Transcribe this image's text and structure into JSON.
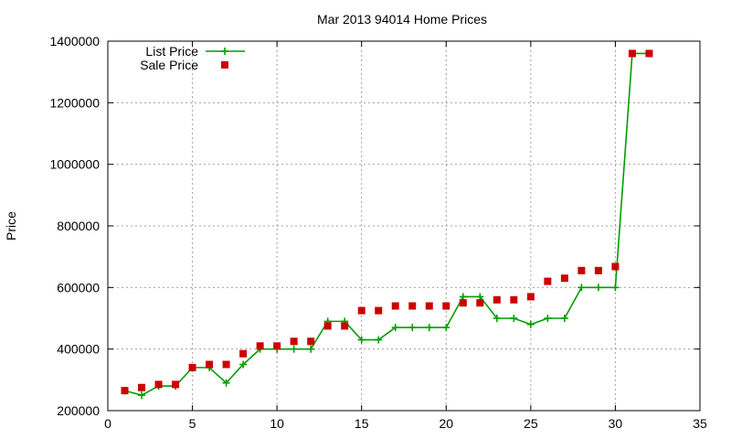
{
  "chart_data": {
    "type": "line",
    "title": "Mar 2013 94014 Home Prices",
    "xlabel": "",
    "ylabel": "Price",
    "xlim": [
      0,
      35
    ],
    "ylim": [
      200000,
      1400000
    ],
    "xticks": [
      "0",
      "5",
      "10",
      "15",
      "20",
      "25",
      "30",
      "35"
    ],
    "yticks": [
      "200000",
      "400000",
      "600000",
      "800000",
      "1000000",
      "1200000",
      "1400000"
    ],
    "grid": true,
    "legend_position": "top-left",
    "series": [
      {
        "name": "List Price",
        "style": "line-with-plus-markers",
        "color": "#009e00",
        "x": [
          1,
          2,
          3,
          4,
          5,
          6,
          7,
          8,
          9,
          10,
          11,
          12,
          13,
          14,
          15,
          16,
          17,
          18,
          19,
          20,
          21,
          22,
          23,
          24,
          25,
          26,
          27,
          28,
          29,
          30,
          31,
          32
        ],
        "y": [
          265000,
          250000,
          280000,
          280000,
          340000,
          340000,
          290000,
          350000,
          400000,
          400000,
          400000,
          400000,
          490000,
          490000,
          430000,
          430000,
          470000,
          470000,
          470000,
          470000,
          570000,
          570000,
          500000,
          500000,
          480000,
          500000,
          500000,
          600000,
          600000,
          600000,
          1360000,
          1360000
        ]
      },
      {
        "name": "Sale Price",
        "style": "square-markers",
        "color": "#cc0000",
        "x": [
          1,
          2,
          3,
          4,
          5,
          6,
          7,
          8,
          9,
          10,
          11,
          12,
          13,
          14,
          15,
          16,
          17,
          18,
          19,
          20,
          21,
          22,
          23,
          24,
          25,
          26,
          27,
          28,
          29,
          30,
          31,
          32
        ],
        "y": [
          265000,
          275000,
          285000,
          285000,
          340000,
          350000,
          350000,
          385000,
          410000,
          410000,
          425000,
          425000,
          475000,
          475000,
          525000,
          525000,
          540000,
          540000,
          540000,
          540000,
          550000,
          550000,
          560000,
          560000,
          570000,
          620000,
          630000,
          655000,
          655000,
          668000,
          1360000,
          1360000
        ]
      }
    ]
  }
}
